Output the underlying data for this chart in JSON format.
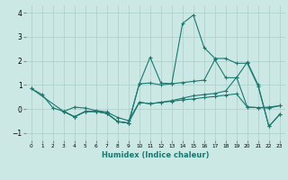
{
  "xlabel": "Humidex (Indice chaleur)",
  "xlim": [
    -0.5,
    23.5
  ],
  "ylim": [
    -1.3,
    4.3
  ],
  "yticks": [
    -1,
    0,
    1,
    2,
    3,
    4
  ],
  "xticks": [
    0,
    1,
    2,
    3,
    4,
    5,
    6,
    7,
    8,
    9,
    10,
    11,
    12,
    13,
    14,
    15,
    16,
    17,
    18,
    19,
    20,
    21,
    22,
    23
  ],
  "bg_color": "#cce8e5",
  "grid_color": "#aacfcc",
  "line_color": "#1a7870",
  "lines": [
    {
      "x": [
        0,
        1,
        2,
        3,
        4,
        5,
        6,
        7,
        8,
        9,
        10,
        11,
        12,
        13,
        14,
        15,
        16,
        17,
        18,
        19,
        20,
        21,
        22,
        23
      ],
      "y": [
        0.85,
        0.6,
        0.05,
        -0.1,
        0.08,
        0.04,
        -0.06,
        -0.12,
        -0.35,
        -0.48,
        0.28,
        0.22,
        0.28,
        0.35,
        0.45,
        0.55,
        0.6,
        0.65,
        0.75,
        1.32,
        0.08,
        0.06,
        0.08,
        0.14
      ]
    },
    {
      "x": [
        0,
        3,
        4,
        5,
        6,
        7,
        8,
        9,
        10,
        11,
        12,
        13,
        14,
        15,
        16,
        17,
        18,
        19,
        20,
        21,
        22,
        23
      ],
      "y": [
        0.85,
        -0.1,
        -0.32,
        -0.1,
        -0.1,
        -0.18,
        -0.52,
        -0.58,
        1.05,
        2.15,
        1.08,
        1.05,
        3.55,
        3.9,
        2.55,
        2.1,
        2.1,
        1.9,
        1.9,
        0.95,
        -0.72,
        -0.22
      ]
    },
    {
      "x": [
        3,
        4,
        5,
        6,
        7,
        8,
        9,
        10,
        11,
        12,
        13,
        14,
        15,
        16,
        17,
        18,
        19,
        20,
        21,
        22,
        23
      ],
      "y": [
        -0.1,
        -0.32,
        -0.1,
        -0.1,
        -0.18,
        -0.52,
        -0.58,
        1.05,
        1.08,
        1.0,
        1.05,
        1.1,
        1.15,
        1.2,
        2.05,
        1.3,
        1.3,
        1.95,
        1.0,
        -0.72,
        -0.22
      ]
    },
    {
      "x": [
        3,
        4,
        5,
        6,
        7,
        8,
        9,
        10,
        11,
        12,
        13,
        14,
        15,
        16,
        17,
        18,
        19,
        20,
        21,
        22,
        23
      ],
      "y": [
        -0.1,
        -0.32,
        -0.1,
        -0.1,
        -0.18,
        -0.52,
        -0.58,
        0.28,
        0.22,
        0.28,
        0.32,
        0.38,
        0.42,
        0.48,
        0.52,
        0.58,
        0.63,
        0.08,
        0.06,
        0.04,
        0.14
      ]
    }
  ]
}
